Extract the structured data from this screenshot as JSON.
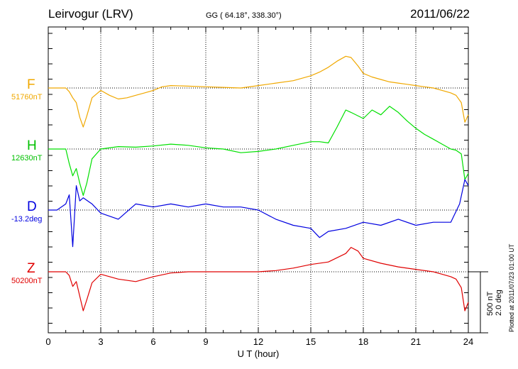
{
  "header": {
    "station": "Leirvogur (LRV)",
    "coords": "GG ( 64.18°, 338.30°)",
    "date": "2011/06/22"
  },
  "scale_label": "500 nT\n2.0 deg",
  "plotted_note": "Plotted at 2011/07/23 01:00 UT",
  "chart_data": {
    "type": "line",
    "title": "",
    "xlabel": "U T (hour)",
    "xlim": [
      0,
      24
    ],
    "xticks": [
      "0",
      "3",
      "6",
      "9",
      "12",
      "15",
      "18",
      "21",
      "24"
    ],
    "grid": true,
    "scale": {
      "nT": 500,
      "deg": 2.0
    },
    "series": [
      {
        "name": "F",
        "baseline_label": "51760nT",
        "color": "#f0a800",
        "x": [
          0,
          1,
          1.2,
          1.4,
          1.6,
          1.8,
          2,
          2.2,
          2.5,
          3,
          3.5,
          4,
          4.5,
          5,
          5.5,
          6,
          6.5,
          7,
          8,
          9,
          10,
          11,
          12,
          13,
          14,
          15,
          15.5,
          16,
          16.5,
          17,
          17.3,
          17.7,
          18,
          18.5,
          19,
          19.5,
          20,
          20.5,
          21,
          21.5,
          22,
          22.5,
          23,
          23.3,
          23.6,
          23.8,
          24
        ],
        "y": [
          0,
          0,
          -30,
          -80,
          -120,
          -240,
          -320,
          -230,
          -80,
          -20,
          -60,
          -90,
          -80,
          -60,
          -40,
          -20,
          10,
          20,
          15,
          10,
          5,
          0,
          20,
          40,
          60,
          100,
          130,
          170,
          220,
          260,
          250,
          180,
          120,
          90,
          70,
          50,
          40,
          30,
          20,
          10,
          0,
          -20,
          -40,
          -60,
          -120,
          -280,
          -220
        ]
      },
      {
        "name": "H",
        "baseline_label": "12630nT",
        "color": "#00e000",
        "x": [
          0,
          1,
          1.2,
          1.4,
          1.6,
          1.8,
          2,
          2.2,
          2.5,
          3,
          4,
          5,
          6,
          7,
          8,
          9,
          10,
          11,
          12,
          13,
          14,
          15,
          15.5,
          16,
          16.5,
          17,
          17.3,
          18,
          18.5,
          19,
          19.5,
          20,
          20.5,
          21,
          21.5,
          22,
          22.5,
          23,
          23.3,
          23.6,
          23.8,
          24
        ],
        "y": [
          0,
          0,
          -120,
          -220,
          -160,
          -280,
          -380,
          -280,
          -80,
          0,
          20,
          15,
          25,
          40,
          30,
          10,
          0,
          -30,
          -20,
          0,
          30,
          60,
          60,
          50,
          180,
          320,
          300,
          250,
          320,
          280,
          350,
          300,
          230,
          170,
          120,
          80,
          40,
          0,
          -10,
          -40,
          -250,
          -200
        ]
      },
      {
        "name": "D",
        "baseline_label": "-13.2deg",
        "color": "#0000e0",
        "x": [
          0,
          0.5,
          1,
          1.2,
          1.4,
          1.6,
          1.8,
          2,
          2.5,
          3,
          4,
          5,
          6,
          7,
          8,
          9,
          10,
          11,
          12,
          13,
          14,
          15,
          15.5,
          16,
          17,
          18,
          19,
          20,
          21,
          22,
          23,
          23.5,
          23.8,
          24
        ],
        "y": [
          0,
          0,
          0.2,
          0.5,
          -1.2,
          0.8,
          0.3,
          0.4,
          0.2,
          -0.1,
          -0.3,
          0.2,
          0.1,
          0.2,
          0.1,
          0.2,
          0.1,
          0.1,
          0,
          -0.3,
          -0.5,
          -0.6,
          -0.9,
          -0.7,
          -0.6,
          -0.4,
          -0.5,
          -0.3,
          -0.5,
          -0.4,
          -0.4,
          0.2,
          1.0,
          0.8
        ]
      },
      {
        "name": "Z",
        "baseline_label": "50200nT",
        "color": "#e00000",
        "x": [
          0,
          1,
          1.2,
          1.4,
          1.6,
          1.8,
          2,
          2.2,
          2.5,
          3,
          4,
          5,
          6,
          7,
          8,
          9,
          10,
          11,
          12,
          13,
          14,
          15,
          16,
          17,
          17.3,
          17.7,
          18,
          19,
          20,
          21,
          22,
          22.5,
          23,
          23.3,
          23.6,
          23.8,
          24
        ],
        "y": [
          0,
          0,
          -30,
          -120,
          -80,
          -200,
          -320,
          -230,
          -90,
          -20,
          -60,
          -80,
          -40,
          -10,
          0,
          0,
          0,
          0,
          0,
          10,
          30,
          60,
          80,
          150,
          200,
          170,
          110,
          70,
          40,
          20,
          0,
          -20,
          -40,
          -60,
          -130,
          -320,
          -250
        ]
      }
    ]
  }
}
